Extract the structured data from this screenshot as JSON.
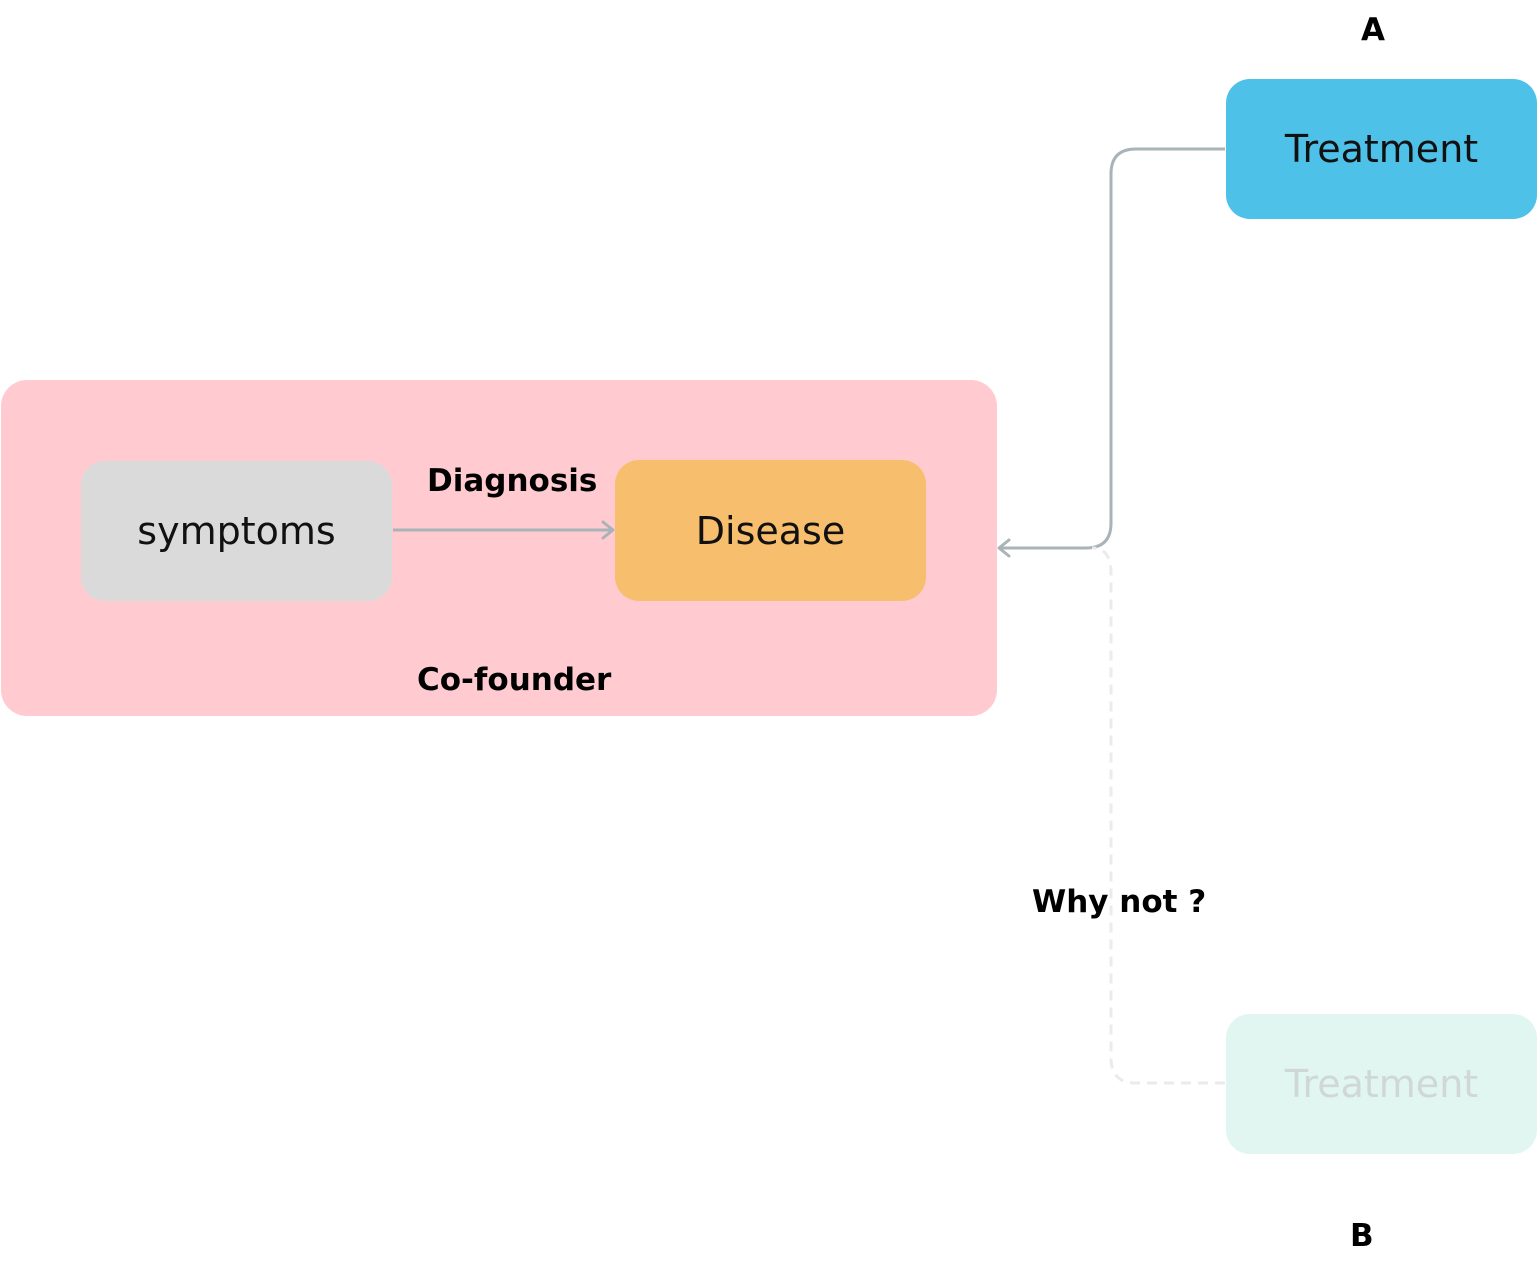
{
  "labels": {
    "top_marker": "A",
    "bottom_marker": "B",
    "edge_diagnosis": "Diagnosis",
    "group_cofounder": "Co-founder",
    "edge_why_not": "Why not ?"
  },
  "nodes": {
    "symptoms": "symptoms",
    "disease": "Disease",
    "treatment_a": "Treatment",
    "treatment_b": "Treatment"
  },
  "colors": {
    "cofounder_group": "#ffcbd1",
    "symptoms": "#dadada",
    "disease": "#f7be6d",
    "treatment_a": "#4ec1e8",
    "treatment_b": "#e1f5f1",
    "connector": "#a9b4b8",
    "connector_faded": "#ebebeb"
  }
}
